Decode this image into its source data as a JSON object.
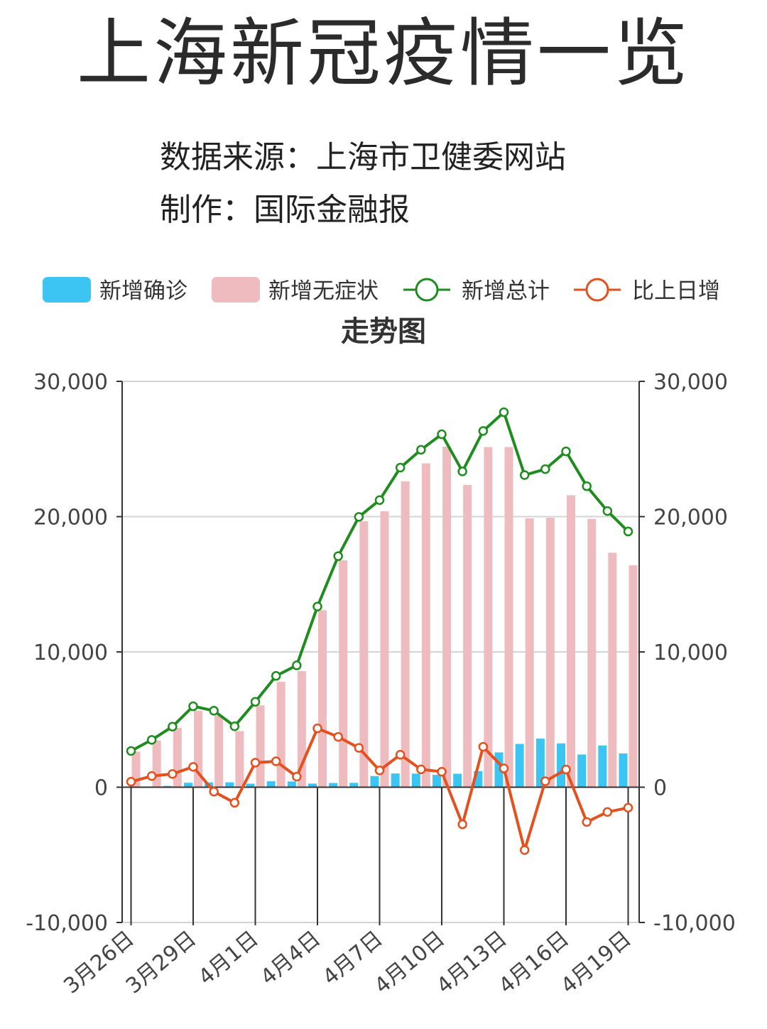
{
  "header": {
    "title": "上海新冠疫情一览",
    "source_line": "数据来源：上海市卫健委网站",
    "maker_line": "制作：国际金融报"
  },
  "chart_data": {
    "type": "bar",
    "title": "走势图",
    "x": [
      "3月26日",
      "3月27日",
      "3月28日",
      "3月29日",
      "3月30日",
      "3月31日",
      "4月1日",
      "4月2日",
      "4月3日",
      "4月4日",
      "4月5日",
      "4月6日",
      "4月7日",
      "4月8日",
      "4月9日",
      "4月10日",
      "4月11日",
      "4月12日",
      "4月13日",
      "4月14日",
      "4月15日",
      "4月16日",
      "4月17日",
      "4月18日",
      "4月19日"
    ],
    "tick_labels": [
      "3月26日",
      "3月29日",
      "4月1日",
      "4月4日",
      "4月7日",
      "4月10日",
      "4月13日",
      "4月16日",
      "4月19日"
    ],
    "yticks": [
      -10000,
      0,
      10000,
      20000,
      30000
    ],
    "ytick_labels": [
      "-10,000",
      "0",
      "10,000",
      "20,000",
      "30,000"
    ],
    "ylim": [
      -10000,
      30000
    ],
    "legend_position": "top",
    "grid": true,
    "series": [
      {
        "name": "新增确诊",
        "kind": "bar",
        "color": "#3cc4f2",
        "values": [
          45,
          50,
          96,
          326,
          355,
          358,
          260,
          438,
          425,
          268,
          311,
          322,
          824,
          1015,
          1006,
          914,
          994,
          1189,
          2573,
          3200,
          3590,
          3238,
          2417,
          3084,
          2494
        ]
      },
      {
        "name": "新增无症状",
        "kind": "bar",
        "color": "#eebcbe",
        "values": [
          2631,
          3450,
          4381,
          5656,
          5298,
          4144,
          6051,
          7788,
          8581,
          13086,
          16766,
          19660,
          20398,
          22609,
          23937,
          25173,
          22348,
          25141,
          25146,
          19872,
          19923,
          21582,
          19831,
          17332,
          16407
        ]
      },
      {
        "name": "新增总计",
        "kind": "line",
        "color": "#1e8c1e",
        "values": [
          2676,
          3500,
          4477,
          5982,
          5653,
          4502,
          6311,
          8226,
          9006,
          13354,
          17077,
          19982,
          21222,
          23624,
          24943,
          26087,
          23342,
          26330,
          27719,
          23072,
          23513,
          24820,
          22248,
          20416,
          18901
        ]
      },
      {
        "name": "比上日增",
        "kind": "line",
        "color": "#e4501e",
        "values": [
          406,
          824,
          977,
          1505,
          -329,
          -1151,
          1809,
          1915,
          780,
          4348,
          3723,
          2905,
          1240,
          2402,
          1319,
          1144,
          -2745,
          2988,
          1389,
          -4647,
          441,
          1307,
          -2572,
          -1832,
          -1515
        ]
      }
    ]
  }
}
